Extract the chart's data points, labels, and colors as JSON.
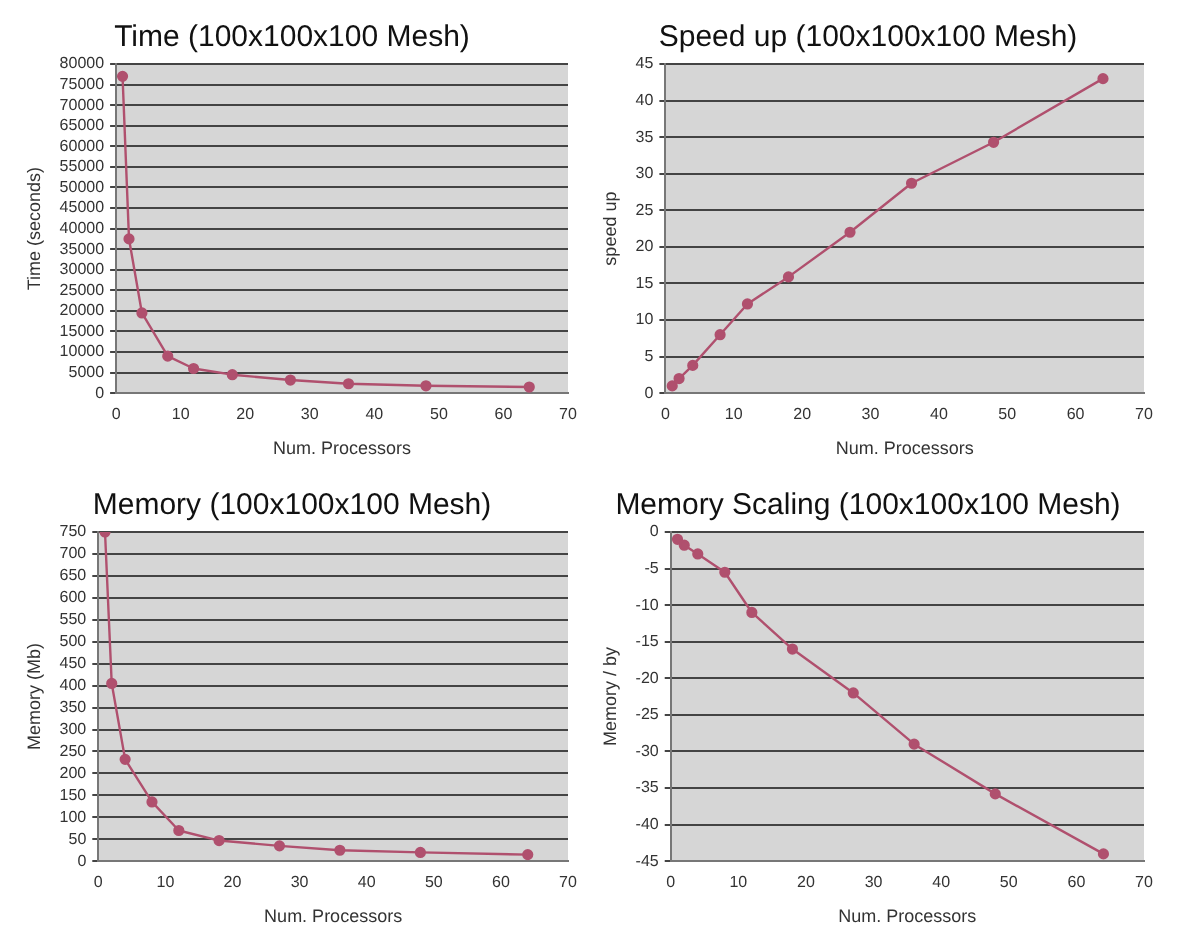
{
  "chart_data": [
    {
      "type": "line",
      "title": "Time (100x100x100 Mesh)",
      "xlabel": "Num. Processors",
      "ylabel": "Time (seconds)",
      "x": [
        1,
        2,
        4,
        8,
        12,
        18,
        27,
        36,
        48,
        64
      ],
      "series": [
        {
          "color": "#b0506e",
          "values": [
            77000,
            37500,
            19500,
            9000,
            6000,
            4500,
            3200,
            2300,
            1800,
            1500
          ]
        }
      ],
      "xlim": [
        0,
        70
      ],
      "xticks": [
        0,
        10,
        20,
        30,
        40,
        50,
        60,
        70
      ],
      "ylim": [
        0,
        80000
      ],
      "yticks": [
        0,
        5000,
        10000,
        15000,
        20000,
        25000,
        30000,
        35000,
        40000,
        45000,
        50000,
        55000,
        60000,
        65000,
        70000,
        75000,
        80000
      ],
      "grid": "y",
      "legend": false,
      "marker": "circle",
      "line_style": "solid"
    },
    {
      "type": "line",
      "title": "Speed up (100x100x100 Mesh)",
      "xlabel": "Num. Processors",
      "ylabel": "speed up",
      "x": [
        1,
        2,
        4,
        8,
        12,
        18,
        27,
        36,
        48,
        64
      ],
      "series": [
        {
          "color": "#b0506e",
          "values": [
            1,
            2,
            3.8,
            8,
            12.2,
            15.9,
            22,
            28.7,
            34.3,
            43
          ]
        }
      ],
      "xlim": [
        0,
        70
      ],
      "xticks": [
        0,
        10,
        20,
        30,
        40,
        50,
        60,
        70
      ],
      "ylim": [
        0,
        45
      ],
      "yticks": [
        0,
        5,
        10,
        15,
        20,
        25,
        30,
        35,
        40,
        45
      ],
      "grid": "y",
      "legend": false,
      "marker": "circle",
      "line_style": "solid"
    },
    {
      "type": "line",
      "title": "Memory (100x100x100 Mesh)",
      "xlabel": "Num. Processors",
      "ylabel": "Memory (Mb)",
      "x": [
        1,
        2,
        4,
        8,
        12,
        18,
        27,
        36,
        48,
        64
      ],
      "series": [
        {
          "color": "#b0506e",
          "values": [
            750,
            405,
            232,
            135,
            70,
            47,
            35,
            25,
            20,
            15
          ]
        }
      ],
      "xlim": [
        0,
        70
      ],
      "xticks": [
        0,
        10,
        20,
        30,
        40,
        50,
        60,
        70
      ],
      "ylim": [
        0,
        750
      ],
      "yticks": [
        0,
        50,
        100,
        150,
        200,
        250,
        300,
        350,
        400,
        450,
        500,
        550,
        600,
        650,
        700,
        750
      ],
      "grid": "y",
      "legend": false,
      "marker": "circle",
      "line_style": "solid"
    },
    {
      "type": "line",
      "title": "Memory Scaling (100x100x100 Mesh)",
      "xlabel": "Num. Processors",
      "ylabel": "Memory / by",
      "x": [
        1,
        2,
        4,
        8,
        12,
        18,
        27,
        36,
        48,
        64
      ],
      "series": [
        {
          "color": "#b0506e",
          "values": [
            -1,
            -1.8,
            -3,
            -5.5,
            -11,
            -16,
            -22,
            -29,
            -35.8,
            -44
          ]
        }
      ],
      "xlim": [
        0,
        70
      ],
      "xticks": [
        0,
        10,
        20,
        30,
        40,
        50,
        60,
        70
      ],
      "ylim": [
        -45,
        0
      ],
      "yticks": [
        -45,
        -40,
        -35,
        -30,
        -25,
        -20,
        -15,
        -10,
        -5,
        0
      ],
      "grid": "y",
      "legend": false,
      "marker": "circle",
      "line_style": "solid"
    }
  ]
}
